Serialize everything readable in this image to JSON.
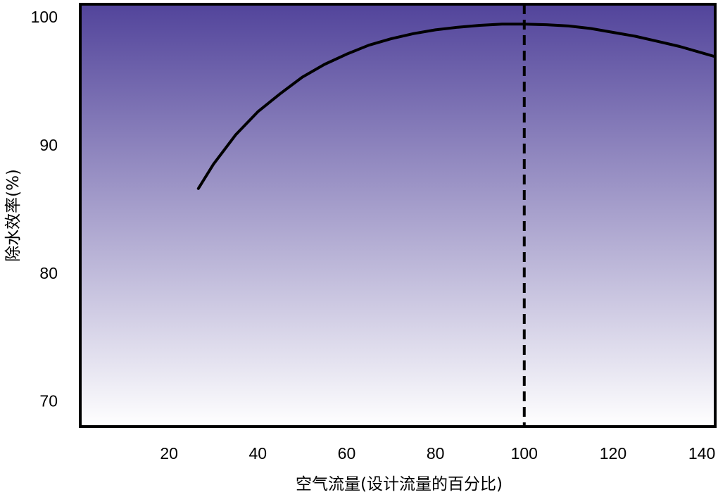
{
  "chart_data": {
    "type": "line",
    "title": "",
    "xlabel": "空气流量(设计流量的百分比)",
    "ylabel": "除水效率(%)",
    "xlim": [
      0,
      143
    ],
    "ylim": [
      68,
      101
    ],
    "x_ticks": [
      20,
      40,
      60,
      80,
      100,
      120,
      140
    ],
    "y_ticks": [
      70,
      80,
      90,
      100
    ],
    "x_tick_labels": [
      "20",
      "40",
      "60",
      "80",
      "100",
      "120",
      "140"
    ],
    "y_tick_labels": [
      "70",
      "80",
      "90",
      "100"
    ],
    "grid": false,
    "legend": "none",
    "series": [
      {
        "points": [
          {
            "x": 26.6,
            "y": 86.6
          },
          {
            "x": 30,
            "y": 88.5
          },
          {
            "x": 35,
            "y": 90.8
          },
          {
            "x": 40,
            "y": 92.6
          },
          {
            "x": 45,
            "y": 94.0
          },
          {
            "x": 50,
            "y": 95.3
          },
          {
            "x": 55,
            "y": 96.3
          },
          {
            "x": 60,
            "y": 97.1
          },
          {
            "x": 65,
            "y": 97.8
          },
          {
            "x": 70,
            "y": 98.3
          },
          {
            "x": 75,
            "y": 98.7
          },
          {
            "x": 80,
            "y": 99.0
          },
          {
            "x": 85,
            "y": 99.2
          },
          {
            "x": 90,
            "y": 99.35
          },
          {
            "x": 95,
            "y": 99.45
          },
          {
            "x": 100,
            "y": 99.45
          },
          {
            "x": 105,
            "y": 99.4
          },
          {
            "x": 110,
            "y": 99.3
          },
          {
            "x": 115,
            "y": 99.1
          },
          {
            "x": 120,
            "y": 98.8
          },
          {
            "x": 125,
            "y": 98.5
          },
          {
            "x": 130,
            "y": 98.1
          },
          {
            "x": 135,
            "y": 97.7
          },
          {
            "x": 140,
            "y": 97.2
          },
          {
            "x": 143,
            "y": 96.9
          }
        ],
        "color": "#000000"
      }
    ],
    "reference_line": {
      "x": 100,
      "style": "dashed",
      "color": "#000000"
    },
    "background_gradient": {
      "top": "#52449b",
      "bottom": "#ffffff"
    }
  }
}
